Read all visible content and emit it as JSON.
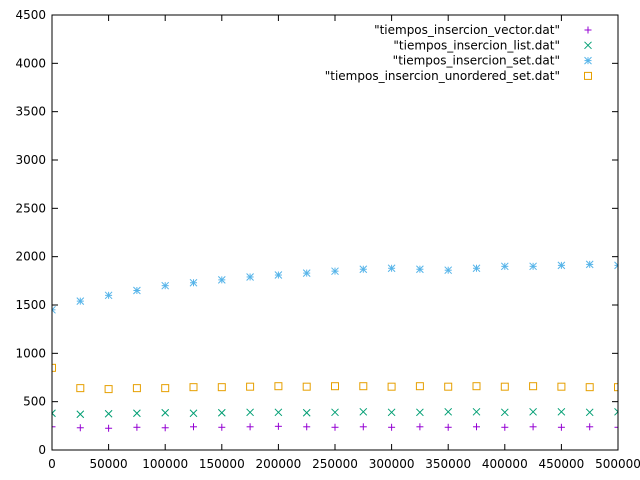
{
  "chart_data": {
    "type": "scatter",
    "title": "",
    "xlabel": "",
    "ylabel": "",
    "xlim": [
      0,
      500000
    ],
    "ylim": [
      0,
      4500
    ],
    "x_ticks": [
      0,
      50000,
      100000,
      150000,
      200000,
      250000,
      300000,
      350000,
      400000,
      450000,
      500000
    ],
    "y_ticks": [
      0,
      500,
      1000,
      1500,
      2000,
      2500,
      3000,
      3500,
      4000,
      4500
    ],
    "grid": false,
    "legend_position": "top-right",
    "series": [
      {
        "name": "\"tiempos_insercion_vector.dat\"",
        "marker": "plus",
        "color": "#9400d3",
        "x": [
          0,
          25000,
          50000,
          75000,
          100000,
          125000,
          150000,
          175000,
          200000,
          225000,
          250000,
          275000,
          300000,
          325000,
          350000,
          375000,
          400000,
          425000,
          450000,
          475000,
          500000
        ],
        "y": [
          240,
          230,
          225,
          235,
          230,
          240,
          235,
          240,
          245,
          240,
          235,
          240,
          235,
          240,
          235,
          240,
          235,
          240,
          235,
          240,
          235
        ]
      },
      {
        "name": "\"tiempos_insercion_list.dat\"",
        "marker": "cross",
        "color": "#009e73",
        "x": [
          0,
          25000,
          50000,
          75000,
          100000,
          125000,
          150000,
          175000,
          200000,
          225000,
          250000,
          275000,
          300000,
          325000,
          350000,
          375000,
          400000,
          425000,
          450000,
          475000,
          500000
        ],
        "y": [
          380,
          370,
          375,
          380,
          385,
          380,
          385,
          390,
          390,
          385,
          390,
          395,
          390,
          390,
          395,
          395,
          390,
          395,
          395,
          390,
          395
        ]
      },
      {
        "name": "\"tiempos_insercion_set.dat\"",
        "marker": "star",
        "color": "#56b4e9",
        "x": [
          0,
          25000,
          50000,
          75000,
          100000,
          125000,
          150000,
          175000,
          200000,
          225000,
          250000,
          275000,
          300000,
          325000,
          350000,
          375000,
          400000,
          425000,
          450000,
          475000,
          500000
        ],
        "y": [
          1450,
          1540,
          1600,
          1650,
          1700,
          1730,
          1760,
          1790,
          1810,
          1830,
          1850,
          1870,
          1880,
          1870,
          1860,
          1880,
          1900,
          1900,
          1910,
          1920,
          1910
        ]
      },
      {
        "name": "\"tiempos_insercion_unordered_set.dat\"",
        "marker": "square",
        "color": "#e69f00",
        "x": [
          0,
          25000,
          50000,
          75000,
          100000,
          125000,
          150000,
          175000,
          200000,
          225000,
          250000,
          275000,
          300000,
          325000,
          350000,
          375000,
          400000,
          425000,
          450000,
          475000,
          500000
        ],
        "y": [
          850,
          640,
          630,
          640,
          640,
          650,
          650,
          655,
          660,
          655,
          660,
          660,
          655,
          660,
          655,
          660,
          655,
          660,
          655,
          650,
          650
        ]
      }
    ]
  }
}
